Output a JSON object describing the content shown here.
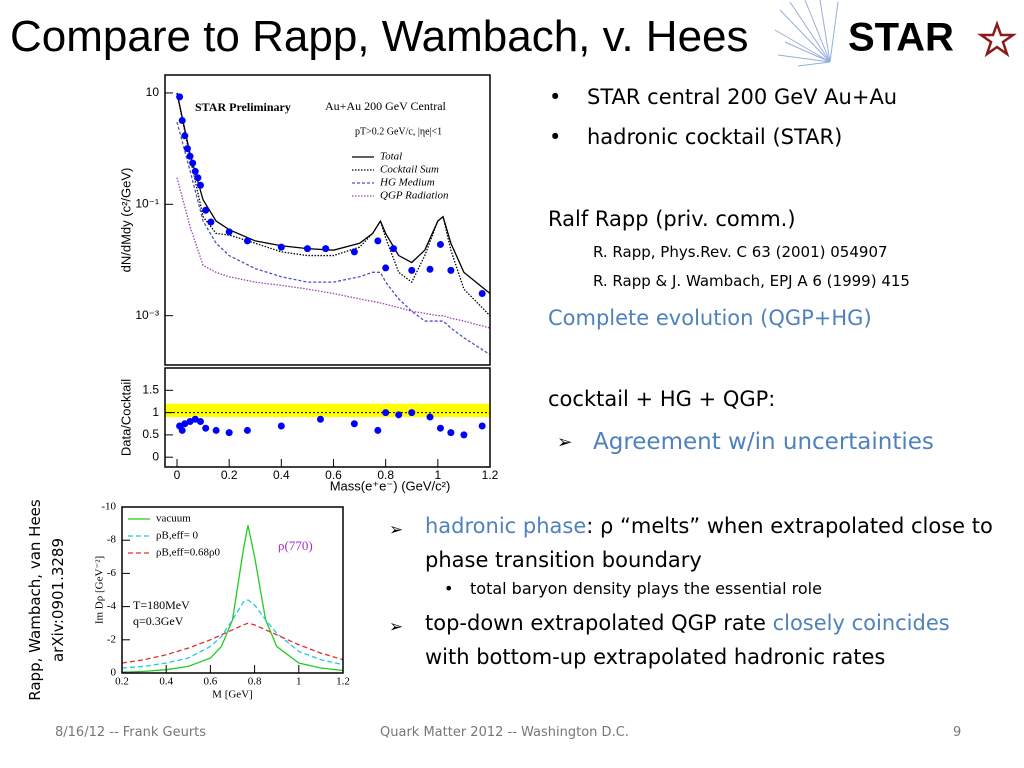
{
  "title": "Compare to Rapp, Wambach, v. Hees",
  "logo": "STAR",
  "top_bullets": [
    "STAR central 200 GeV Au+Au",
    "hadronic cocktail  (STAR)"
  ],
  "rapp": {
    "heading": "Ralf Rapp (priv. comm.)",
    "refs": [
      "R. Rapp, Phys.Rev. C 63 (2001) 054907",
      "R. Rapp & J. Wambach, EPJ A 6 (1999) 415"
    ]
  },
  "evolution": "Complete evolution (QGP+HG)",
  "sum": "cocktail + HG + QGP:",
  "agreement": "Agreement w/in uncertainties",
  "findings": [
    {
      "parts": [
        "hadronic phase",
        ": ρ  “melts” when extrapolated close to phase transition boundary"
      ]
    },
    {
      "parts": [
        "total baryon density plays the essential role"
      ]
    },
    {
      "parts": [
        "top-down extrapolated QGP rate ",
        "closely coincides",
        " with bottom-up extrapolated hadronic rates"
      ]
    }
  ],
  "side_caption": [
    "Rapp, Wambach, van Hees",
    "arXiv:0901.3289"
  ],
  "footer": {
    "left": "8/16/12 -- Frank Geurts",
    "center": "Quark Matter 2012 -- Washington D.C.",
    "right": "9"
  },
  "chart_data": [
    {
      "type": "line",
      "log_y": true,
      "ylabel": "dN/dMdy (c²/GeV)",
      "annotations": [
        "STAR Preliminary",
        "Au+Au 200 GeV Central",
        "pT>0.2 GeV/c, |ηe|<1"
      ],
      "xlim": [
        -0.046,
        1.2
      ],
      "ylim": [
        0.00013,
        21
      ],
      "yticks": [
        {
          "value": 10,
          "label": "10"
        },
        {
          "value": 0.1,
          "label": "10⁻¹"
        },
        {
          "value": 0.001,
          "label": "10⁻³"
        }
      ],
      "legend": "upper right",
      "x": [
        0.0,
        0.05,
        0.1,
        0.15,
        0.2,
        0.3,
        0.4,
        0.5,
        0.6,
        0.7,
        0.75,
        0.78,
        0.8,
        0.85,
        0.9,
        0.95,
        1.0,
        1.02,
        1.05,
        1.1,
        1.2
      ],
      "series": [
        {
          "name": "Total",
          "color": "#000000",
          "dash": "none",
          "values": [
            10,
            0.8,
            0.12,
            0.05,
            0.035,
            0.022,
            0.018,
            0.016,
            0.015,
            0.02,
            0.03,
            0.05,
            0.03,
            0.012,
            0.009,
            0.015,
            0.05,
            0.06,
            0.02,
            0.006,
            0.0025
          ]
        },
        {
          "name": "Cocktail Sum",
          "color": "#000000",
          "dash": "1.5,1.5",
          "values": [
            10,
            0.7,
            0.06,
            0.03,
            0.028,
            0.02,
            0.014,
            0.012,
            0.012,
            0.017,
            0.03,
            0.05,
            0.025,
            0.006,
            0.004,
            0.012,
            0.05,
            0.06,
            0.015,
            0.003,
            0.001
          ]
        },
        {
          "name": "HG Medium",
          "color": "#5050c8",
          "dash": "3,2",
          "values": [
            3,
            0.4,
            0.05,
            0.02,
            0.012,
            0.007,
            0.005,
            0.004,
            0.004,
            0.005,
            0.006,
            0.006,
            0.004,
            0.002,
            0.0012,
            0.0008,
            0.0008,
            0.0008,
            0.0006,
            0.0004,
            0.0002
          ]
        },
        {
          "name": "QGP Radiation",
          "color": "#a040b0",
          "dash": "1.5,1.5",
          "values": [
            0.3,
            0.04,
            0.008,
            0.006,
            0.005,
            0.004,
            0.0035,
            0.003,
            0.0025,
            0.002,
            0.0018,
            0.0017,
            0.0016,
            0.0014,
            0.0012,
            0.0011,
            0.001,
            0.001,
            0.0009,
            0.0008,
            0.0006
          ]
        }
      ],
      "points": {
        "color": "#0000ff",
        "x": [
          0.01,
          0.02,
          0.03,
          0.04,
          0.05,
          0.06,
          0.07,
          0.08,
          0.09,
          0.11,
          0.13,
          0.2,
          0.27,
          0.4,
          0.5,
          0.57,
          0.68,
          0.77,
          0.8,
          0.83,
          0.9,
          0.97,
          1.01,
          1.05,
          1.17
        ],
        "values": [
          8.5,
          3.2,
          1.7,
          1.0,
          0.73,
          0.55,
          0.39,
          0.3,
          0.22,
          0.078,
          0.048,
          0.032,
          0.022,
          0.017,
          0.016,
          0.016,
          0.014,
          0.022,
          0.0072,
          0.016,
          0.0065,
          0.0068,
          0.019,
          0.0065,
          0.0025
        ]
      }
    },
    {
      "type": "line",
      "log_y": false,
      "ylabel": "Data/Cocktail",
      "xlabel": "Mass(e⁺e⁻) (GeV/c²)",
      "xlim": [
        -0.046,
        1.2
      ],
      "ylim": [
        -0.22,
        2
      ],
      "xticks": [
        0,
        0.2,
        0.4,
        0.6,
        0.8,
        1,
        1.2
      ],
      "yticks": [
        0,
        0.5,
        1,
        1.5
      ],
      "band": {
        "low": 0.9,
        "high": 1.2,
        "color": "#ffff00"
      },
      "reference": 1,
      "points": {
        "color": "#0000ff",
        "x": [
          0.01,
          0.02,
          0.03,
          0.05,
          0.07,
          0.09,
          0.11,
          0.15,
          0.2,
          0.27,
          0.4,
          0.55,
          0.68,
          0.77,
          0.8,
          0.85,
          0.9,
          0.97,
          1.01,
          1.05,
          1.1,
          1.17
        ],
        "values": [
          0.7,
          0.6,
          0.75,
          0.8,
          0.85,
          0.8,
          0.65,
          0.6,
          0.55,
          0.6,
          0.7,
          0.85,
          0.75,
          0.6,
          1.0,
          0.95,
          1.0,
          0.9,
          0.65,
          0.55,
          0.5,
          0.7
        ]
      }
    },
    {
      "type": "line",
      "log_y": false,
      "ylabel": "Im Dρ [GeV⁻²]",
      "xlabel": "M [GeV]",
      "annotations": [
        "ρ(770)",
        "T=180MeV",
        "q=0.3GeV"
      ],
      "xlim": [
        0.2,
        1.2
      ],
      "ylim": [
        0,
        -10
      ],
      "xticks": [
        0.2,
        0.4,
        0.6,
        0.8,
        1,
        1.2
      ],
      "yticks": [
        -10,
        -8,
        -6,
        -4,
        -2,
        0
      ],
      "legend": "upper left",
      "x": [
        0.2,
        0.3,
        0.4,
        0.5,
        0.6,
        0.65,
        0.7,
        0.75,
        0.77,
        0.8,
        0.85,
        0.9,
        1.0,
        1.1,
        1.2
      ],
      "series": [
        {
          "name": "vacuum",
          "color": "#22cc22",
          "dash": "none",
          "values": [
            -0.05,
            -0.1,
            -0.2,
            -0.4,
            -0.9,
            -1.6,
            -3.2,
            -7.5,
            -8.9,
            -7,
            -3.2,
            -1.6,
            -0.6,
            -0.3,
            -0.15
          ]
        },
        {
          "name": "ρB,eff= 0",
          "color": "#22c8e0",
          "dash": "5,3",
          "values": [
            -0.3,
            -0.4,
            -0.6,
            -0.9,
            -1.6,
            -2.2,
            -3.2,
            -4.3,
            -4.4,
            -4.1,
            -3.2,
            -2.4,
            -1.3,
            -0.8,
            -0.5
          ]
        },
        {
          "name": "ρB,eff=0.68ρ0",
          "color": "#e03030",
          "dash": "5,3",
          "values": [
            -0.6,
            -0.8,
            -1.1,
            -1.5,
            -2.0,
            -2.3,
            -2.6,
            -2.9,
            -3.0,
            -2.9,
            -2.6,
            -2.3,
            -1.7,
            -1.2,
            -0.8
          ]
        }
      ]
    }
  ]
}
